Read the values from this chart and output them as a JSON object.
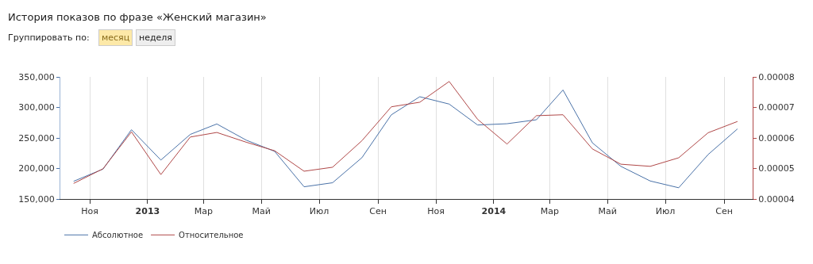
{
  "chart_data": {
    "type": "line",
    "title": "История показов по фразе «Женский магазин»",
    "annotations": [
      "Группировать по:",
      "месяц",
      "неделя"
    ],
    "x": [
      "2012-10-15",
      "2012-11-15",
      "2012-12-15",
      "2013-01-15",
      "2013-02-15",
      "2013-03-15",
      "2013-04-15",
      "2013-05-15",
      "2013-06-15",
      "2013-07-15",
      "2013-08-15",
      "2013-09-15",
      "2013-10-15",
      "2013-11-15",
      "2013-12-15",
      "2014-01-15",
      "2014-02-15",
      "2014-03-15",
      "2014-04-15",
      "2014-05-15",
      "2014-06-15",
      "2014-07-15",
      "2014-08-15",
      "2014-09-15"
    ],
    "series": [
      {
        "name": "Абсолютное",
        "color": "#4a72a8",
        "values": [
          179000,
          199000,
          263500,
          213800,
          255800,
          272900,
          246400,
          228000,
          170000,
          176600,
          217700,
          287900,
          317500,
          305500,
          271200,
          273300,
          279800,
          328600,
          242000,
          203500,
          179500,
          168400,
          222800,
          264800
        ]
      },
      {
        "name": "Относительное",
        "color": "#b04848",
        "axis": "y2",
        "values": [
          4.51e-05,
          4.99e-05,
          6.2e-05,
          4.8e-05,
          6.03e-05,
          6.18e-05,
          5.86e-05,
          5.58e-05,
          4.91e-05,
          5.04e-05,
          5.91e-05,
          7.02e-05,
          7.17e-05,
          7.85e-05,
          6.61e-05,
          5.8e-05,
          6.73e-05,
          6.76e-05,
          5.64e-05,
          5.14e-05,
          5.07e-05,
          5.35e-05,
          6.17e-05,
          6.54e-05
        ]
      }
    ],
    "xlim": [
      "2012-10-01",
      "2014-10-01"
    ],
    "xticks": [
      {
        "value": "2012-11-01",
        "label": "Ноя"
      },
      {
        "value": "2013-01-01",
        "label": "2013"
      },
      {
        "value": "2013-03-01",
        "label": "Мар"
      },
      {
        "value": "2013-05-01",
        "label": "Май"
      },
      {
        "value": "2013-07-01",
        "label": "Июл"
      },
      {
        "value": "2013-09-01",
        "label": "Сен"
      },
      {
        "value": "2013-11-01",
        "label": "Ноя"
      },
      {
        "value": "2014-01-01",
        "label": "2014"
      },
      {
        "value": "2014-03-01",
        "label": "Мар"
      },
      {
        "value": "2014-05-01",
        "label": "Май"
      },
      {
        "value": "2014-07-01",
        "label": "Июл"
      },
      {
        "value": "2014-09-01",
        "label": "Сен"
      }
    ],
    "ylim": [
      150000,
      350000
    ],
    "yticks": [
      {
        "value": 150000,
        "label": "150,000"
      },
      {
        "value": 200000,
        "label": "200,000"
      },
      {
        "value": 250000,
        "label": "250,000"
      },
      {
        "value": 300000,
        "label": "300,000"
      },
      {
        "value": 350000,
        "label": "350,000"
      }
    ],
    "y2lim": [
      4e-05,
      8e-05
    ],
    "y2ticks": [
      {
        "value": 4e-05,
        "label": "0.00004"
      },
      {
        "value": 5e-05,
        "label": "0.00005"
      },
      {
        "value": 6e-05,
        "label": "0.00006"
      },
      {
        "value": 7e-05,
        "label": "0.00007"
      },
      {
        "value": 8e-05,
        "label": "0.00008"
      }
    ],
    "grid": "x",
    "legend": "bottom left",
    "marker": "none",
    "line_style": "solid"
  }
}
